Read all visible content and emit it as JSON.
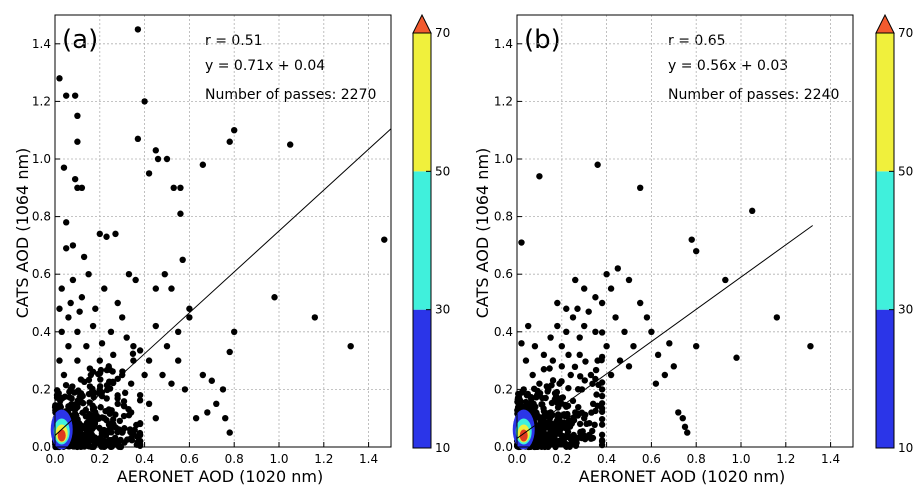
{
  "chart_data": [
    {
      "type": "scatter",
      "panel_label": "(a)",
      "xlabel": "AERONET AOD (1020 nm)",
      "ylabel": "CATS AOD (1064 nm)",
      "xlim": [
        0,
        1.5
      ],
      "ylim": [
        0,
        1.5
      ],
      "x_ticks": [
        "0.0",
        "0.2",
        "0.4",
        "0.6",
        "0.8",
        "1.0",
        "1.2",
        "1.4"
      ],
      "y_ticks": [
        "0.0",
        "0.2",
        "0.4",
        "0.6",
        "0.8",
        "1.0",
        "1.2",
        "1.4"
      ],
      "grid": true,
      "annotations": [
        "r = 0.51",
        "y = 0.71x + 0.04",
        "Number of passes: 2270"
      ],
      "fit_line": {
        "slope": 0.71,
        "intercept": 0.04,
        "x_range": [
          0.0,
          1.5
        ]
      },
      "colorbar": {
        "ticks": [
          "10",
          "30",
          "50",
          "70"
        ],
        "bands": [
          "#2b35e8",
          "#40f0dc",
          "#f0f03c"
        ],
        "extend_color": "#f25a2e"
      },
      "points": [
        {
          "x": 0.02,
          "y": 1.28
        },
        {
          "x": 0.05,
          "y": 1.22
        },
        {
          "x": 0.09,
          "y": 1.22
        },
        {
          "x": 0.1,
          "y": 1.15
        },
        {
          "x": 0.1,
          "y": 1.06
        },
        {
          "x": 0.04,
          "y": 0.97
        },
        {
          "x": 0.1,
          "y": 0.9
        },
        {
          "x": 0.12,
          "y": 0.9
        },
        {
          "x": 0.09,
          "y": 0.93
        },
        {
          "x": 0.37,
          "y": 1.45
        },
        {
          "x": 0.4,
          "y": 1.2
        },
        {
          "x": 0.37,
          "y": 1.07
        },
        {
          "x": 0.45,
          "y": 1.03
        },
        {
          "x": 0.46,
          "y": 1.0
        },
        {
          "x": 0.5,
          "y": 1.0
        },
        {
          "x": 0.53,
          "y": 0.9
        },
        {
          "x": 0.56,
          "y": 0.9
        },
        {
          "x": 0.56,
          "y": 0.81
        },
        {
          "x": 0.42,
          "y": 0.95
        },
        {
          "x": 0.66,
          "y": 0.98
        },
        {
          "x": 0.78,
          "y": 1.06
        },
        {
          "x": 0.8,
          "y": 1.1
        },
        {
          "x": 1.05,
          "y": 1.05
        },
        {
          "x": 1.47,
          "y": 0.72
        },
        {
          "x": 0.98,
          "y": 0.52
        },
        {
          "x": 1.16,
          "y": 0.45
        },
        {
          "x": 1.32,
          "y": 0.35
        },
        {
          "x": 0.8,
          "y": 0.4
        },
        {
          "x": 0.78,
          "y": 0.33
        },
        {
          "x": 0.6,
          "y": 0.48
        },
        {
          "x": 0.66,
          "y": 0.25
        },
        {
          "x": 0.7,
          "y": 0.23
        },
        {
          "x": 0.75,
          "y": 0.2
        },
        {
          "x": 0.72,
          "y": 0.15
        },
        {
          "x": 0.76,
          "y": 0.1
        },
        {
          "x": 0.78,
          "y": 0.05
        },
        {
          "x": 0.68,
          "y": 0.12
        },
        {
          "x": 0.63,
          "y": 0.1
        },
        {
          "x": 0.05,
          "y": 0.78
        },
        {
          "x": 0.05,
          "y": 0.69
        },
        {
          "x": 0.08,
          "y": 0.7
        },
        {
          "x": 0.13,
          "y": 0.66
        },
        {
          "x": 0.2,
          "y": 0.74
        },
        {
          "x": 0.23,
          "y": 0.73
        },
        {
          "x": 0.27,
          "y": 0.74
        },
        {
          "x": 0.33,
          "y": 0.6
        },
        {
          "x": 0.36,
          "y": 0.58
        },
        {
          "x": 0.45,
          "y": 0.55
        },
        {
          "x": 0.49,
          "y": 0.6
        },
        {
          "x": 0.52,
          "y": 0.55
        },
        {
          "x": 0.57,
          "y": 0.65
        },
        {
          "x": 0.6,
          "y": 0.45
        },
        {
          "x": 0.55,
          "y": 0.4
        },
        {
          "x": 0.5,
          "y": 0.35
        },
        {
          "x": 0.45,
          "y": 0.42
        },
        {
          "x": 0.42,
          "y": 0.3
        },
        {
          "x": 0.48,
          "y": 0.25
        },
        {
          "x": 0.52,
          "y": 0.22
        },
        {
          "x": 0.58,
          "y": 0.2
        },
        {
          "x": 0.55,
          "y": 0.3
        },
        {
          "x": 0.4,
          "y": 0.25
        },
        {
          "x": 0.38,
          "y": 0.18
        },
        {
          "x": 0.35,
          "y": 0.35
        },
        {
          "x": 0.3,
          "y": 0.45
        },
        {
          "x": 0.28,
          "y": 0.5
        },
        {
          "x": 0.25,
          "y": 0.4
        },
        {
          "x": 0.22,
          "y": 0.55
        },
        {
          "x": 0.18,
          "y": 0.48
        },
        {
          "x": 0.15,
          "y": 0.6
        },
        {
          "x": 0.12,
          "y": 0.52
        },
        {
          "x": 0.08,
          "y": 0.58
        },
        {
          "x": 0.03,
          "y": 0.55
        },
        {
          "x": 0.06,
          "y": 0.45
        },
        {
          "x": 0.1,
          "y": 0.4
        },
        {
          "x": 0.14,
          "y": 0.35
        },
        {
          "x": 0.2,
          "y": 0.3
        },
        {
          "x": 0.24,
          "y": 0.28
        },
        {
          "x": 0.3,
          "y": 0.25
        },
        {
          "x": 0.34,
          "y": 0.22
        },
        {
          "x": 0.28,
          "y": 0.15
        },
        {
          "x": 0.2,
          "y": 0.2
        },
        {
          "x": 0.16,
          "y": 0.25
        },
        {
          "x": 0.1,
          "y": 0.3
        },
        {
          "x": 0.06,
          "y": 0.35
        },
        {
          "x": 0.03,
          "y": 0.4
        },
        {
          "x": 0.02,
          "y": 0.3
        },
        {
          "x": 0.04,
          "y": 0.25
        },
        {
          "x": 0.07,
          "y": 0.2
        },
        {
          "x": 0.12,
          "y": 0.18
        },
        {
          "x": 0.18,
          "y": 0.12
        },
        {
          "x": 0.22,
          "y": 0.1
        },
        {
          "x": 0.26,
          "y": 0.08
        },
        {
          "x": 0.3,
          "y": 0.05
        },
        {
          "x": 0.34,
          "y": 0.12
        },
        {
          "x": 0.38,
          "y": 0.08
        },
        {
          "x": 0.42,
          "y": 0.15
        },
        {
          "x": 0.45,
          "y": 0.1
        },
        {
          "x": 0.35,
          "y": 0.3
        },
        {
          "x": 0.32,
          "y": 0.38
        },
        {
          "x": 0.26,
          "y": 0.32
        },
        {
          "x": 0.21,
          "y": 0.36
        },
        {
          "x": 0.17,
          "y": 0.42
        },
        {
          "x": 0.11,
          "y": 0.47
        },
        {
          "x": 0.07,
          "y": 0.5
        },
        {
          "x": 0.02,
          "y": 0.48
        }
      ]
    },
    {
      "type": "scatter",
      "panel_label": "(b)",
      "xlabel": "AERONET AOD (1020 nm)",
      "ylabel": "CATS AOD (1064 nm)",
      "xlim": [
        0,
        1.5
      ],
      "ylim": [
        0,
        1.5
      ],
      "x_ticks": [
        "0.0",
        "0.2",
        "0.4",
        "0.6",
        "0.8",
        "1.0",
        "1.2",
        "1.4"
      ],
      "y_ticks": [
        "0.0",
        "0.2",
        "0.4",
        "0.6",
        "0.8",
        "1.0",
        "1.2",
        "1.4"
      ],
      "grid": true,
      "annotations": [
        "r = 0.65",
        "y = 0.56x + 0.03",
        "Number of passes: 2240"
      ],
      "fit_line": {
        "slope": 0.56,
        "intercept": 0.03,
        "x_range": [
          0.0,
          1.32
        ]
      },
      "colorbar": {
        "ticks": [
          "10",
          "30",
          "50",
          "70"
        ],
        "bands": [
          "#2b35e8",
          "#40f0dc",
          "#f0f03c"
        ],
        "extend_color": "#f25a2e"
      },
      "points": [
        {
          "x": 0.1,
          "y": 0.94
        },
        {
          "x": 0.36,
          "y": 0.98
        },
        {
          "x": 0.55,
          "y": 0.9
        },
        {
          "x": 1.05,
          "y": 0.82
        },
        {
          "x": 0.78,
          "y": 0.72
        },
        {
          "x": 0.8,
          "y": 0.68
        },
        {
          "x": 0.02,
          "y": 0.71
        },
        {
          "x": 0.93,
          "y": 0.58
        },
        {
          "x": 1.16,
          "y": 0.45
        },
        {
          "x": 1.31,
          "y": 0.35
        },
        {
          "x": 0.98,
          "y": 0.31
        },
        {
          "x": 0.8,
          "y": 0.35
        },
        {
          "x": 0.68,
          "y": 0.36
        },
        {
          "x": 0.7,
          "y": 0.28
        },
        {
          "x": 0.63,
          "y": 0.32
        },
        {
          "x": 0.66,
          "y": 0.25
        },
        {
          "x": 0.72,
          "y": 0.12
        },
        {
          "x": 0.74,
          "y": 0.1
        },
        {
          "x": 0.75,
          "y": 0.07
        },
        {
          "x": 0.76,
          "y": 0.05
        },
        {
          "x": 0.62,
          "y": 0.22
        },
        {
          "x": 0.6,
          "y": 0.4
        },
        {
          "x": 0.58,
          "y": 0.45
        },
        {
          "x": 0.55,
          "y": 0.5
        },
        {
          "x": 0.5,
          "y": 0.58
        },
        {
          "x": 0.45,
          "y": 0.62
        },
        {
          "x": 0.4,
          "y": 0.6
        },
        {
          "x": 0.42,
          "y": 0.55
        },
        {
          "x": 0.38,
          "y": 0.5
        },
        {
          "x": 0.35,
          "y": 0.52
        },
        {
          "x": 0.32,
          "y": 0.47
        },
        {
          "x": 0.3,
          "y": 0.42
        },
        {
          "x": 0.28,
          "y": 0.38
        },
        {
          "x": 0.25,
          "y": 0.45
        },
        {
          "x": 0.22,
          "y": 0.4
        },
        {
          "x": 0.2,
          "y": 0.35
        },
        {
          "x": 0.18,
          "y": 0.42
        },
        {
          "x": 0.15,
          "y": 0.38
        },
        {
          "x": 0.12,
          "y": 0.32
        },
        {
          "x": 0.08,
          "y": 0.35
        },
        {
          "x": 0.05,
          "y": 0.42
        },
        {
          "x": 0.02,
          "y": 0.36
        },
        {
          "x": 0.04,
          "y": 0.3
        },
        {
          "x": 0.07,
          "y": 0.25
        },
        {
          "x": 0.1,
          "y": 0.22
        },
        {
          "x": 0.14,
          "y": 0.2
        },
        {
          "x": 0.18,
          "y": 0.16
        },
        {
          "x": 0.22,
          "y": 0.14
        },
        {
          "x": 0.26,
          "y": 0.12
        },
        {
          "x": 0.3,
          "y": 0.1
        },
        {
          "x": 0.34,
          "y": 0.15
        },
        {
          "x": 0.38,
          "y": 0.2
        },
        {
          "x": 0.42,
          "y": 0.25
        },
        {
          "x": 0.46,
          "y": 0.3
        },
        {
          "x": 0.5,
          "y": 0.28
        },
        {
          "x": 0.52,
          "y": 0.35
        },
        {
          "x": 0.48,
          "y": 0.4
        },
        {
          "x": 0.44,
          "y": 0.45
        },
        {
          "x": 0.4,
          "y": 0.35
        },
        {
          "x": 0.36,
          "y": 0.3
        },
        {
          "x": 0.33,
          "y": 0.25
        },
        {
          "x": 0.29,
          "y": 0.2
        },
        {
          "x": 0.24,
          "y": 0.25
        },
        {
          "x": 0.2,
          "y": 0.28
        },
        {
          "x": 0.16,
          "y": 0.3
        },
        {
          "x": 0.12,
          "y": 0.27
        },
        {
          "x": 0.09,
          "y": 0.18
        },
        {
          "x": 0.06,
          "y": 0.15
        },
        {
          "x": 0.03,
          "y": 0.2
        },
        {
          "x": 0.28,
          "y": 0.32
        },
        {
          "x": 0.23,
          "y": 0.32
        },
        {
          "x": 0.19,
          "y": 0.22
        },
        {
          "x": 0.15,
          "y": 0.12
        },
        {
          "x": 0.11,
          "y": 0.1
        },
        {
          "x": 0.3,
          "y": 0.55
        },
        {
          "x": 0.27,
          "y": 0.48
        },
        {
          "x": 0.26,
          "y": 0.58
        },
        {
          "x": 0.18,
          "y": 0.5
        },
        {
          "x": 0.22,
          "y": 0.48
        },
        {
          "x": 0.35,
          "y": 0.4
        }
      ]
    }
  ]
}
